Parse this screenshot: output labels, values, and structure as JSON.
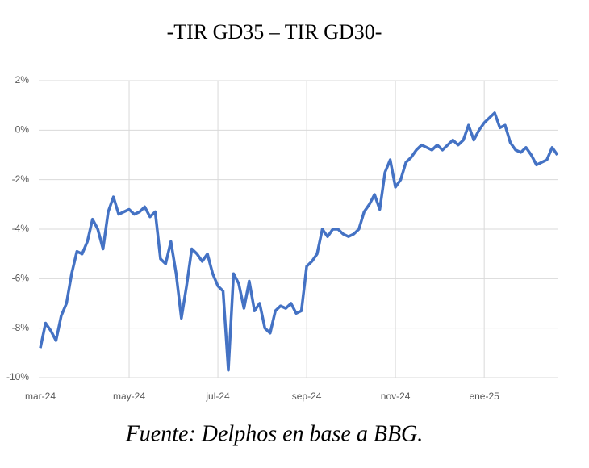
{
  "chart_data": {
    "type": "line",
    "title": "-TIR GD35  – TIR GD30-",
    "source": "Fuente: Delphos en base a BBG.",
    "categories": [
      "mar-24",
      null,
      null,
      null,
      null,
      null,
      null,
      null,
      null,
      null,
      null,
      null,
      null,
      null,
      null,
      null,
      null,
      "may-24",
      null,
      null,
      null,
      null,
      null,
      null,
      null,
      null,
      null,
      null,
      null,
      null,
      null,
      null,
      null,
      null,
      "jul-24",
      null,
      null,
      null,
      null,
      null,
      null,
      null,
      null,
      null,
      null,
      null,
      null,
      null,
      null,
      null,
      null,
      "sep-24",
      null,
      null,
      null,
      null,
      null,
      null,
      null,
      null,
      null,
      null,
      null,
      null,
      null,
      null,
      null,
      null,
      "nov-24",
      null,
      null,
      null,
      null,
      null,
      null,
      null,
      null,
      null,
      null,
      null,
      null,
      null,
      null,
      null,
      null,
      "ene-25",
      null,
      null,
      null,
      null,
      null,
      null,
      null,
      null,
      null,
      null,
      null,
      null,
      null,
      null
    ],
    "series": [
      {
        "color": "#4472c4",
        "values": [
          -8.8,
          -7.8,
          -8.1,
          -8.5,
          -7.5,
          -7.0,
          -5.8,
          -4.9,
          -5.0,
          -4.5,
          -3.6,
          -4.0,
          -4.8,
          -3.3,
          -2.7,
          -3.4,
          -3.3,
          -3.2,
          -3.4,
          -3.3,
          -3.1,
          -3.5,
          -3.3,
          -5.2,
          -5.4,
          -4.5,
          -5.8,
          -7.6,
          -6.3,
          -4.8,
          -5.0,
          -5.3,
          -5.0,
          -5.8,
          -6.3,
          -6.5,
          -9.7,
          -5.8,
          -6.2,
          -7.2,
          -6.1,
          -7.3,
          -7.0,
          -8.0,
          -8.2,
          -7.3,
          -7.1,
          -7.2,
          -7.0,
          -7.4,
          -7.3,
          -5.5,
          -5.3,
          -5.0,
          -4.0,
          -4.3,
          -4.0,
          -4.0,
          -4.2,
          -4.3,
          -4.2,
          -4.0,
          -3.3,
          -3.0,
          -2.6,
          -3.2,
          -1.7,
          -1.2,
          -2.3,
          -2.0,
          -1.3,
          -1.1,
          -0.8,
          -0.6,
          -0.7,
          -0.8,
          -0.6,
          -0.8,
          -0.6,
          -0.4,
          -0.6,
          -0.4,
          0.2,
          -0.4,
          0.0,
          0.3,
          0.5,
          0.7,
          0.1,
          0.2,
          -0.5,
          -0.8,
          -0.9,
          -0.7,
          -1.0,
          -1.4,
          -1.3,
          -1.2,
          -0.7,
          -1.0
        ]
      }
    ],
    "ylim": [
      -10,
      2
    ],
    "yticks": [
      {
        "value": -10,
        "label": "-10%"
      },
      {
        "value": -8,
        "label": "-8%"
      },
      {
        "value": -6,
        "label": "-6%"
      },
      {
        "value": -4,
        "label": "-4%"
      },
      {
        "value": -2,
        "label": "-2%"
      },
      {
        "value": 0,
        "label": "0%"
      },
      {
        "value": 2,
        "label": "2%"
      }
    ],
    "grid": true
  }
}
